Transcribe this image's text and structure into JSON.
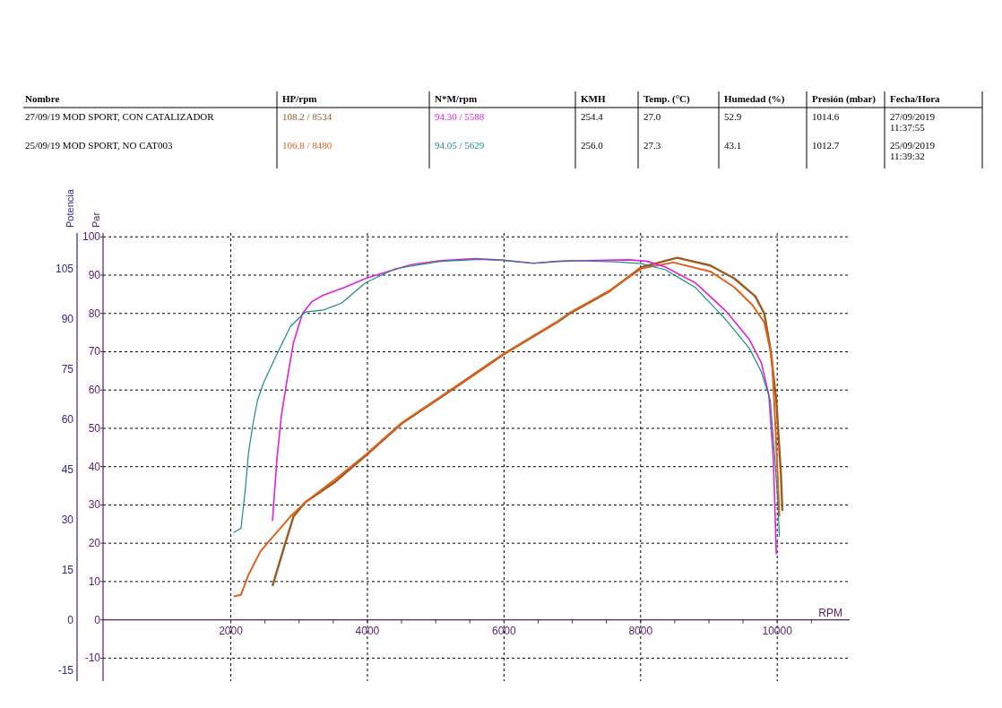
{
  "chart_data": {
    "type": "line",
    "xlabel": "RPM",
    "ylabel": "Par",
    "y2label": "Potencia",
    "annotations": [
      "Nombre",
      "HP/rpm",
      "N*M/rpm",
      "KMH",
      "Temp. (°C)",
      "Humedad (%)",
      "Presión (mbar)",
      "Fecha/Hora",
      "27/09/19 MOD SPORT, CON CATALIZADOR",
      "108.2 / 8534",
      "94.30 / 5588",
      "254.4",
      "27.0",
      "52.9",
      "1014.6",
      "27/09/2019 11:37:55",
      "25/09/19 MOD SPORT, NO CAT003",
      "106.8 / 8480",
      "94.05 / 5629",
      "256.0",
      "27.3",
      "43.1",
      "1012.7",
      "25/09/2019 11:39:32"
    ],
    "xlim": [
      130,
      11060
    ],
    "xticks": [
      {
        "value": 2000,
        "label": "2000"
      },
      {
        "value": 2500,
        "label": null
      },
      {
        "value": 3000,
        "label": null
      },
      {
        "value": 3500,
        "label": null
      },
      {
        "value": 4000,
        "label": "4000"
      },
      {
        "value": 4500,
        "label": null
      },
      {
        "value": 5000,
        "label": null
      },
      {
        "value": 5500,
        "label": null
      },
      {
        "value": 6000,
        "label": "6000"
      },
      {
        "value": 6500,
        "label": null
      },
      {
        "value": 7000,
        "label": null
      },
      {
        "value": 7500,
        "label": null
      },
      {
        "value": 8000,
        "label": "8000"
      },
      {
        "value": 8500,
        "label": null
      },
      {
        "value": 9000,
        "label": null
      },
      {
        "value": 9500,
        "label": null
      },
      {
        "value": 10000,
        "label": "10000"
      },
      {
        "value": 10500,
        "label": null
      }
    ],
    "ylim": [
      -16,
      101
    ],
    "yticks": [
      -10,
      0,
      10,
      20,
      30,
      40,
      50,
      60,
      70,
      80,
      90,
      100
    ],
    "y2lim": [
      -18.3,
      115.6
    ],
    "y2ticks": [
      -15,
      0,
      15,
      30,
      45,
      60,
      75,
      90,
      105
    ],
    "grid": true,
    "line_style": "solid",
    "marker": "none",
    "series": [
      {
        "color": "#9a5a1e",
        "axis": "y2",
        "x": [
          2610,
          2786,
          2918,
          3093,
          3533,
          3972,
          4499,
          5290,
          5992,
          6783,
          6957,
          7529,
          8011,
          8534,
          9020,
          9372,
          9679,
          9811,
          9899,
          9987,
          10053,
          10075
        ],
        "values": [
          10.1,
          22.1,
          30.9,
          35.2,
          41.3,
          49.0,
          58.6,
          69.5,
          79.3,
          89.0,
          91.5,
          98.0,
          105.4,
          108.2,
          105.9,
          102.0,
          96.7,
          91.5,
          81.1,
          65.5,
          43.9,
          32.6
        ]
      },
      {
        "color": "#e0601c",
        "axis": "y2",
        "x": [
          2040,
          2149,
          2259,
          2435,
          2654,
          2873,
          3093,
          3533,
          3972,
          4499,
          5290,
          5992,
          6783,
          6957,
          7529,
          8011,
          8480,
          9020,
          9372,
          9635,
          9811,
          9921,
          9965,
          10009,
          10031
        ],
        "values": [
          7.0,
          7.5,
          13.5,
          20.5,
          25.7,
          30.9,
          35.2,
          42.1,
          49.3,
          58.8,
          69.7,
          79.5,
          89.2,
          91.7,
          98.2,
          105.0,
          106.8,
          104.1,
          99.4,
          94.1,
          88.9,
          78.5,
          61.2,
          42.1,
          30.9
        ]
      },
      {
        "color": "#e020e0",
        "x": [
          2610,
          2676,
          2742,
          2830,
          2918,
          3050,
          3182,
          3357,
          3664,
          3972,
          4235,
          4631,
          5070,
          5588,
          5992,
          6431,
          6783,
          7200,
          7836,
          8100,
          8362,
          8801,
          9240,
          9592,
          9767,
          9877,
          9943,
          9987
        ],
        "values": [
          25.8,
          42.1,
          53.5,
          63.3,
          72.4,
          80.0,
          83.0,
          84.8,
          86.8,
          89.1,
          90.6,
          92.7,
          93.8,
          94.3,
          93.9,
          93.1,
          93.6,
          93.8,
          94.0,
          93.6,
          92.1,
          88.0,
          80.8,
          73.2,
          67.1,
          58.8,
          42.1,
          17.1
        ]
      },
      {
        "color": "#1a8c80",
        "x": [
          2040,
          2149,
          2215,
          2259,
          2325,
          2391,
          2478,
          2654,
          2873,
          3093,
          3357,
          3621,
          3972,
          4411,
          5070,
          5630,
          5992,
          6431,
          6783,
          6957,
          7616,
          8011,
          8362,
          8801,
          9240,
          9592,
          9767,
          9899,
          9965,
          10009,
          10031
        ],
        "values": [
          22.8,
          23.9,
          34.5,
          43.6,
          51.2,
          57.3,
          61.8,
          68.6,
          76.6,
          80.4,
          80.9,
          82.7,
          88.0,
          91.7,
          93.6,
          94.1,
          93.9,
          93.1,
          93.6,
          93.8,
          93.5,
          93.0,
          91.4,
          86.8,
          78.5,
          70.9,
          64.8,
          57.3,
          42.1,
          30.8,
          21.7
        ]
      }
    ]
  }
}
